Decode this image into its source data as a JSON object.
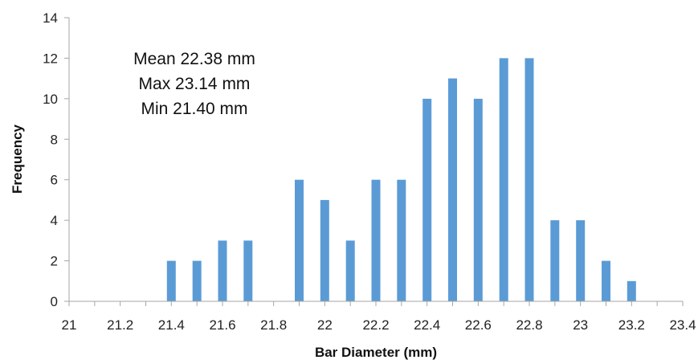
{
  "chart_data": {
    "type": "bar",
    "title": "",
    "xlabel": "Bar Diameter (mm)",
    "ylabel": "Frequency",
    "ylim": [
      0,
      14
    ],
    "yticks": [
      "0",
      "2",
      "4",
      "6",
      "8",
      "10",
      "12",
      "14"
    ],
    "xlim": [
      21,
      23.4
    ],
    "xticks": [
      "21",
      "21.2",
      "21.4",
      "21.6",
      "21.8",
      "22",
      "22.2",
      "22.4",
      "22.6",
      "22.8",
      "23",
      "23.2",
      "23.4"
    ],
    "x": [
      21.4,
      21.5,
      21.6,
      21.7,
      21.8,
      21.9,
      22.0,
      22.1,
      22.2,
      22.3,
      22.4,
      22.5,
      22.6,
      22.7,
      22.8,
      22.9,
      23.0,
      23.1,
      23.2
    ],
    "values": [
      2,
      2,
      3,
      3,
      0,
      6,
      5,
      3,
      6,
      6,
      10,
      11,
      10,
      12,
      12,
      4,
      4,
      2,
      1
    ],
    "bar_color": "#5B9BD5",
    "grid": false,
    "legend": "none",
    "annotations": [
      "Mean 22.38 mm",
      "Max 23.14 mm",
      "Min 21.40 mm"
    ]
  }
}
